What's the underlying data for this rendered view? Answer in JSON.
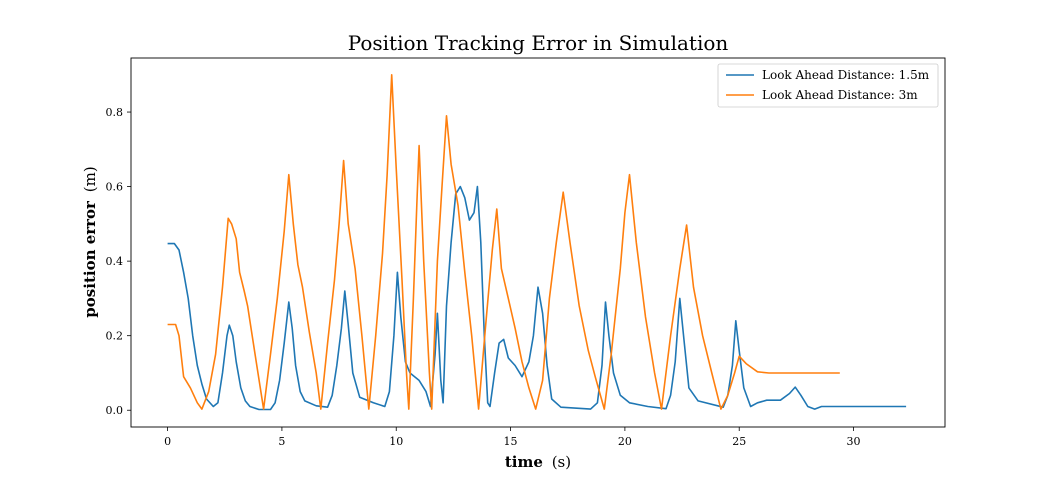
{
  "chart_data": {
    "type": "line",
    "title": "Position Tracking Error in Simulation",
    "xlabel_bold": "time",
    "xlabel_unit": "(s)",
    "ylabel_bold": "position error",
    "ylabel_unit": "(m)",
    "xlim": [
      -1.6,
      34
    ],
    "ylim": [
      -0.045,
      0.945
    ],
    "xticks": [
      0,
      5,
      10,
      15,
      20,
      25,
      30
    ],
    "yticks": [
      0.0,
      0.2,
      0.4,
      0.6,
      0.8
    ],
    "ytick_labels": [
      "0.0",
      "0.2",
      "0.4",
      "0.6",
      "0.8"
    ],
    "grid": false,
    "legend_position": "top-right",
    "series": [
      {
        "name": "Look Ahead Distance: 1.5m",
        "color": "#1f77b4",
        "points": [
          [
            0,
            0.447
          ],
          [
            0.3,
            0.447
          ],
          [
            0.5,
            0.43
          ],
          [
            0.7,
            0.37
          ],
          [
            0.9,
            0.3
          ],
          [
            1.1,
            0.2
          ],
          [
            1.3,
            0.12
          ],
          [
            1.5,
            0.07
          ],
          [
            1.7,
            0.03
          ],
          [
            2.0,
            0.01
          ],
          [
            2.2,
            0.02
          ],
          [
            2.4,
            0.1
          ],
          [
            2.6,
            0.2
          ],
          [
            2.7,
            0.228
          ],
          [
            2.85,
            0.2
          ],
          [
            3.0,
            0.13
          ],
          [
            3.2,
            0.06
          ],
          [
            3.4,
            0.025
          ],
          [
            3.6,
            0.01
          ],
          [
            4.0,
            0.002
          ],
          [
            4.5,
            0.002
          ],
          [
            4.7,
            0.02
          ],
          [
            4.9,
            0.08
          ],
          [
            5.1,
            0.18
          ],
          [
            5.3,
            0.29
          ],
          [
            5.45,
            0.22
          ],
          [
            5.6,
            0.12
          ],
          [
            5.8,
            0.05
          ],
          [
            6.0,
            0.025
          ],
          [
            6.5,
            0.012
          ],
          [
            7.0,
            0.008
          ],
          [
            7.2,
            0.04
          ],
          [
            7.4,
            0.12
          ],
          [
            7.6,
            0.22
          ],
          [
            7.75,
            0.32
          ],
          [
            7.9,
            0.23
          ],
          [
            8.1,
            0.1
          ],
          [
            8.4,
            0.035
          ],
          [
            9.0,
            0.02
          ],
          [
            9.5,
            0.01
          ],
          [
            9.7,
            0.05
          ],
          [
            9.9,
            0.2
          ],
          [
            10.05,
            0.37
          ],
          [
            10.2,
            0.25
          ],
          [
            10.4,
            0.13
          ],
          [
            10.6,
            0.1
          ],
          [
            11.0,
            0.08
          ],
          [
            11.3,
            0.05
          ],
          [
            11.5,
            0.01
          ],
          [
            11.7,
            0.15
          ],
          [
            11.8,
            0.26
          ],
          [
            11.95,
            0.08
          ],
          [
            12.05,
            0.02
          ],
          [
            12.2,
            0.28
          ],
          [
            12.4,
            0.45
          ],
          [
            12.6,
            0.58
          ],
          [
            12.8,
            0.6
          ],
          [
            13.0,
            0.57
          ],
          [
            13.2,
            0.51
          ],
          [
            13.4,
            0.53
          ],
          [
            13.55,
            0.6
          ],
          [
            13.7,
            0.45
          ],
          [
            13.85,
            0.2
          ],
          [
            14.0,
            0.02
          ],
          [
            14.1,
            0.01
          ],
          [
            14.3,
            0.1
          ],
          [
            14.5,
            0.18
          ],
          [
            14.7,
            0.19
          ],
          [
            14.9,
            0.14
          ],
          [
            15.2,
            0.12
          ],
          [
            15.5,
            0.09
          ],
          [
            15.8,
            0.13
          ],
          [
            16.0,
            0.2
          ],
          [
            16.2,
            0.33
          ],
          [
            16.4,
            0.26
          ],
          [
            16.6,
            0.12
          ],
          [
            16.8,
            0.03
          ],
          [
            17.2,
            0.008
          ],
          [
            18.5,
            0.003
          ],
          [
            18.8,
            0.02
          ],
          [
            19.0,
            0.12
          ],
          [
            19.15,
            0.29
          ],
          [
            19.3,
            0.2
          ],
          [
            19.5,
            0.1
          ],
          [
            19.8,
            0.04
          ],
          [
            20.2,
            0.02
          ],
          [
            21.0,
            0.01
          ],
          [
            21.8,
            0.004
          ],
          [
            22.0,
            0.04
          ],
          [
            22.2,
            0.13
          ],
          [
            22.4,
            0.3
          ],
          [
            22.6,
            0.18
          ],
          [
            22.8,
            0.06
          ],
          [
            23.2,
            0.025
          ],
          [
            24.3,
            0.008
          ],
          [
            24.5,
            0.04
          ],
          [
            24.7,
            0.12
          ],
          [
            24.85,
            0.24
          ],
          [
            25.0,
            0.16
          ],
          [
            25.2,
            0.06
          ],
          [
            25.5,
            0.01
          ],
          [
            25.8,
            0.02
          ],
          [
            26.2,
            0.027
          ],
          [
            26.8,
            0.027
          ],
          [
            27.2,
            0.045
          ],
          [
            27.45,
            0.062
          ],
          [
            27.7,
            0.04
          ],
          [
            28.0,
            0.01
          ],
          [
            28.3,
            0.003
          ],
          [
            28.6,
            0.01
          ],
          [
            32.3,
            0.01
          ]
        ]
      },
      {
        "name": "Look Ahead Distance: 3m",
        "color": "#ff7f0e",
        "points": [
          [
            0,
            0.23
          ],
          [
            0.35,
            0.23
          ],
          [
            0.5,
            0.2
          ],
          [
            0.7,
            0.09
          ],
          [
            1.0,
            0.06
          ],
          [
            1.3,
            0.02
          ],
          [
            1.5,
            0.003
          ],
          [
            1.8,
            0.05
          ],
          [
            2.1,
            0.15
          ],
          [
            2.4,
            0.33
          ],
          [
            2.65,
            0.515
          ],
          [
            2.8,
            0.5
          ],
          [
            3.0,
            0.46
          ],
          [
            3.15,
            0.37
          ],
          [
            3.35,
            0.32
          ],
          [
            3.5,
            0.28
          ],
          [
            3.7,
            0.2
          ],
          [
            3.9,
            0.12
          ],
          [
            4.2,
            0.003
          ],
          [
            4.5,
            0.15
          ],
          [
            4.8,
            0.3
          ],
          [
            5.1,
            0.48
          ],
          [
            5.3,
            0.632
          ],
          [
            5.5,
            0.5
          ],
          [
            5.7,
            0.39
          ],
          [
            5.9,
            0.33
          ],
          [
            6.2,
            0.21
          ],
          [
            6.5,
            0.1
          ],
          [
            6.7,
            0.003
          ],
          [
            7.0,
            0.18
          ],
          [
            7.3,
            0.35
          ],
          [
            7.5,
            0.5
          ],
          [
            7.7,
            0.67
          ],
          [
            7.9,
            0.5
          ],
          [
            8.2,
            0.38
          ],
          [
            8.5,
            0.2
          ],
          [
            8.8,
            0.003
          ],
          [
            9.1,
            0.2
          ],
          [
            9.4,
            0.42
          ],
          [
            9.6,
            0.63
          ],
          [
            9.8,
            0.9
          ],
          [
            10.0,
            0.65
          ],
          [
            10.25,
            0.35
          ],
          [
            10.45,
            0.1
          ],
          [
            10.55,
            0.003
          ],
          [
            10.75,
            0.3
          ],
          [
            10.9,
            0.55
          ],
          [
            11.0,
            0.71
          ],
          [
            11.2,
            0.4
          ],
          [
            11.45,
            0.1
          ],
          [
            11.55,
            0.003
          ],
          [
            11.8,
            0.4
          ],
          [
            12.0,
            0.6
          ],
          [
            12.2,
            0.79
          ],
          [
            12.4,
            0.66
          ],
          [
            12.7,
            0.55
          ],
          [
            13.0,
            0.37
          ],
          [
            13.3,
            0.2
          ],
          [
            13.6,
            0.003
          ],
          [
            13.9,
            0.22
          ],
          [
            14.2,
            0.43
          ],
          [
            14.4,
            0.54
          ],
          [
            14.6,
            0.38
          ],
          [
            14.9,
            0.3
          ],
          [
            15.2,
            0.22
          ],
          [
            15.5,
            0.13
          ],
          [
            15.8,
            0.06
          ],
          [
            16.1,
            0.003
          ],
          [
            16.4,
            0.08
          ],
          [
            16.7,
            0.3
          ],
          [
            17.0,
            0.45
          ],
          [
            17.3,
            0.585
          ],
          [
            17.6,
            0.45
          ],
          [
            18.0,
            0.28
          ],
          [
            18.4,
            0.16
          ],
          [
            18.7,
            0.09
          ],
          [
            19.1,
            0.003
          ],
          [
            19.4,
            0.15
          ],
          [
            19.8,
            0.38
          ],
          [
            20.0,
            0.53
          ],
          [
            20.2,
            0.632
          ],
          [
            20.5,
            0.45
          ],
          [
            20.9,
            0.25
          ],
          [
            21.3,
            0.1
          ],
          [
            21.6,
            0.003
          ],
          [
            22.0,
            0.2
          ],
          [
            22.4,
            0.38
          ],
          [
            22.7,
            0.497
          ],
          [
            23.0,
            0.33
          ],
          [
            23.4,
            0.2
          ],
          [
            23.8,
            0.1
          ],
          [
            24.2,
            0.003
          ],
          [
            24.5,
            0.04
          ],
          [
            24.8,
            0.1
          ],
          [
            25.0,
            0.145
          ],
          [
            25.3,
            0.125
          ],
          [
            25.8,
            0.103
          ],
          [
            26.3,
            0.1
          ],
          [
            29.4,
            0.1
          ]
        ]
      }
    ]
  }
}
